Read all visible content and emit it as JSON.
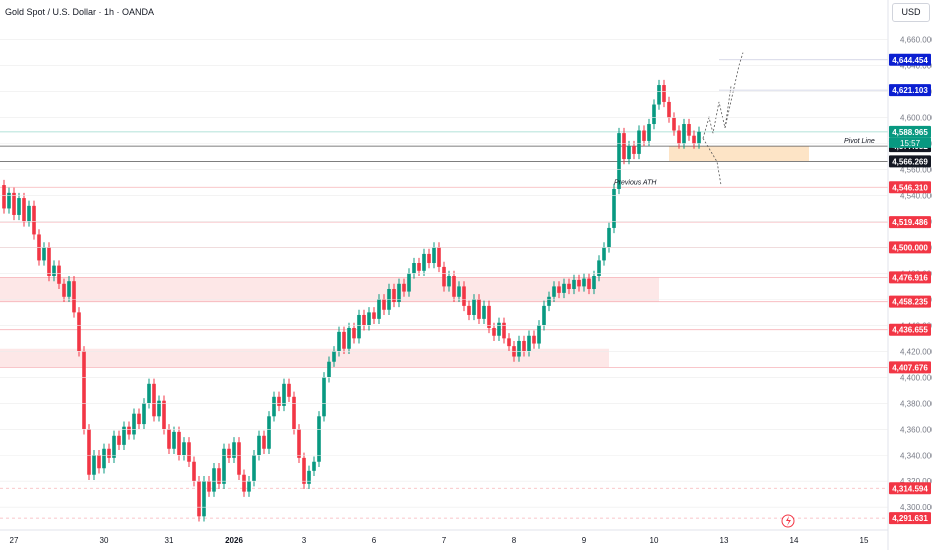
{
  "symbol_title": "Gold Spot / U.S. Dollar · 1h · OANDA",
  "currency": "USD",
  "countdown": "15:57",
  "colors": {
    "up": "#089981",
    "down": "#f23645",
    "zone": "#fde7e7",
    "pivot_zone": "#fde4c6",
    "pivot_line": "#131722",
    "accent_blue": "#0b1fd1",
    "grid": "#ececec"
  },
  "chart_data": {
    "type": "candlestick",
    "title": "Gold Spot / U.S. Dollar · 1h · OANDA",
    "ylim": [
      4284,
      4672
    ],
    "x_ticks": [
      {
        "i": 2,
        "label": "27"
      },
      {
        "i": 20,
        "label": "30"
      },
      {
        "i": 33,
        "label": "31"
      },
      {
        "i": 46,
        "label": "2026"
      },
      {
        "i": 60,
        "label": "3"
      },
      {
        "i": 74,
        "label": "6"
      },
      {
        "i": 88,
        "label": "7"
      },
      {
        "i": 102,
        "label": "8"
      },
      {
        "i": 116,
        "label": "9"
      },
      {
        "i": 130,
        "label": "10"
      },
      {
        "i": 144,
        "label": "13"
      },
      {
        "i": 158,
        "label": "14"
      },
      {
        "i": 172,
        "label": "15"
      }
    ],
    "y_ticks": [
      4300,
      4320,
      4340,
      4360,
      4380,
      4400,
      4420,
      4440,
      4460,
      4480,
      4500,
      4520,
      4540,
      4560,
      4580,
      4600,
      4620,
      4640,
      4660
    ],
    "price_labels": [
      {
        "value": 4644.454,
        "label": "4,644.454",
        "color": "#0b1fd1"
      },
      {
        "value": 4621.103,
        "label": "4,621.103",
        "color": "#0b1fd1"
      },
      {
        "value": 4588.965,
        "label": "4,588.965",
        "color": "#089981"
      },
      {
        "value": 4577.982,
        "label": "4,577.982",
        "color": "#131722"
      },
      {
        "value": 4566.269,
        "label": "4,566.269",
        "color": "#131722"
      },
      {
        "value": 4546.31,
        "label": "4,546.310",
        "color": "#f23645"
      },
      {
        "value": 4519.486,
        "label": "4,519.486",
        "color": "#f23645"
      },
      {
        "value": 4500.0,
        "label": "4,500.000",
        "color": "#f23645"
      },
      {
        "value": 4476.916,
        "label": "4,476.916",
        "color": "#f23645"
      },
      {
        "value": 4458.235,
        "label": "4,458.235",
        "color": "#f23645"
      },
      {
        "value": 4436.655,
        "label": "4,436.655",
        "color": "#f23645"
      },
      {
        "value": 4407.676,
        "label": "4,407.676",
        "color": "#f23645"
      },
      {
        "value": 4314.594,
        "label": "4,314.594",
        "color": "#f23645"
      },
      {
        "value": 4291.631,
        "label": "4,291.631",
        "color": "#f23645"
      }
    ],
    "zones": [
      {
        "from": 4458.235,
        "to": 4476.916,
        "i_end": 131,
        "color": "#fde7e7"
      },
      {
        "from": 4407.676,
        "to": 4422.0,
        "i_end": 121,
        "color": "#fde7e7"
      },
      {
        "from": 4566.269,
        "to": 4577.982,
        "i_start": 133,
        "i_end": 161,
        "color": "#fde4c6"
      }
    ],
    "annotations": [
      {
        "text": "Previous ATH",
        "value": 4546.31,
        "i": 122
      },
      {
        "text": "Pivot Line",
        "value": 4577.982,
        "i": 168
      }
    ],
    "candles": [
      [
        4548,
        4530
      ],
      [
        4530,
        4542
      ],
      [
        4542,
        4525
      ],
      [
        4525,
        4538
      ],
      [
        4538,
        4520
      ],
      [
        4520,
        4532
      ],
      [
        4532,
        4510
      ],
      [
        4510,
        4490
      ],
      [
        4490,
        4500
      ],
      [
        4500,
        4478
      ],
      [
        4478,
        4486
      ],
      [
        4486,
        4472
      ],
      [
        4472,
        4462
      ],
      [
        4462,
        4474
      ],
      [
        4474,
        4450
      ],
      [
        4450,
        4420
      ],
      [
        4420,
        4360
      ],
      [
        4360,
        4325
      ],
      [
        4325,
        4340
      ],
      [
        4340,
        4330
      ],
      [
        4330,
        4345
      ],
      [
        4345,
        4338
      ],
      [
        4338,
        4355
      ],
      [
        4355,
        4348
      ],
      [
        4348,
        4362
      ],
      [
        4362,
        4356
      ],
      [
        4356,
        4372
      ],
      [
        4372,
        4364
      ],
      [
        4364,
        4380
      ],
      [
        4380,
        4395
      ],
      [
        4395,
        4370
      ],
      [
        4370,
        4382
      ],
      [
        4382,
        4360
      ],
      [
        4360,
        4345
      ],
      [
        4345,
        4358
      ],
      [
        4358,
        4340
      ],
      [
        4340,
        4350
      ],
      [
        4350,
        4335
      ],
      [
        4335,
        4320
      ],
      [
        4320,
        4293
      ],
      [
        4293,
        4320
      ],
      [
        4320,
        4312
      ],
      [
        4312,
        4330
      ],
      [
        4330,
        4318
      ],
      [
        4318,
        4345
      ],
      [
        4345,
        4338
      ],
      [
        4338,
        4350
      ],
      [
        4350,
        4325
      ],
      [
        4325,
        4312
      ],
      [
        4312,
        4320
      ],
      [
        4320,
        4340
      ],
      [
        4340,
        4355
      ],
      [
        4355,
        4345
      ],
      [
        4345,
        4370
      ],
      [
        4370,
        4385
      ],
      [
        4385,
        4378
      ],
      [
        4378,
        4395
      ],
      [
        4395,
        4385
      ],
      [
        4385,
        4360
      ],
      [
        4360,
        4338
      ],
      [
        4338,
        4318
      ],
      [
        4318,
        4328
      ],
      [
        4328,
        4335
      ],
      [
        4335,
        4370
      ],
      [
        4370,
        4400
      ],
      [
        4400,
        4412
      ],
      [
        4412,
        4420
      ],
      [
        4420,
        4435
      ],
      [
        4435,
        4422
      ],
      [
        4422,
        4438
      ],
      [
        4438,
        4430
      ],
      [
        4430,
        4448
      ],
      [
        4448,
        4440
      ],
      [
        4440,
        4450
      ],
      [
        4450,
        4445
      ],
      [
        4445,
        4460
      ],
      [
        4460,
        4452
      ],
      [
        4452,
        4468
      ],
      [
        4468,
        4458
      ],
      [
        4458,
        4472
      ],
      [
        4472,
        4466
      ],
      [
        4466,
        4480
      ],
      [
        4480,
        4488
      ],
      [
        4488,
        4482
      ],
      [
        4482,
        4495
      ],
      [
        4495,
        4488
      ],
      [
        4488,
        4500
      ],
      [
        4500,
        4485
      ],
      [
        4485,
        4470
      ],
      [
        4470,
        4478
      ],
      [
        4478,
        4462
      ],
      [
        4462,
        4470
      ],
      [
        4470,
        4455
      ],
      [
        4455,
        4448
      ],
      [
        4448,
        4460
      ],
      [
        4460,
        4445
      ],
      [
        4445,
        4455
      ],
      [
        4455,
        4438
      ],
      [
        4438,
        4432
      ],
      [
        4432,
        4442
      ],
      [
        4442,
        4430
      ],
      [
        4430,
        4424
      ],
      [
        4424,
        4416
      ],
      [
        4416,
        4428
      ],
      [
        4428,
        4420
      ],
      [
        4420,
        4432
      ],
      [
        4432,
        4426
      ],
      [
        4426,
        4440
      ],
      [
        4440,
        4455
      ],
      [
        4455,
        4462
      ],
      [
        4462,
        4470
      ],
      [
        4470,
        4465
      ],
      [
        4465,
        4472
      ],
      [
        4472,
        4468
      ],
      [
        4468,
        4475
      ],
      [
        4475,
        4470
      ],
      [
        4470,
        4476
      ],
      [
        4476,
        4468
      ],
      [
        4468,
        4478
      ],
      [
        4478,
        4490
      ],
      [
        4490,
        4500
      ],
      [
        4500,
        4515
      ],
      [
        4515,
        4545
      ],
      [
        4545,
        4588
      ],
      [
        4588,
        4568
      ],
      [
        4568,
        4578
      ],
      [
        4578,
        4572
      ],
      [
        4572,
        4590
      ],
      [
        4590,
        4582
      ],
      [
        4582,
        4595
      ],
      [
        4595,
        4610
      ],
      [
        4610,
        4625
      ],
      [
        4625,
        4612
      ],
      [
        4612,
        4600
      ],
      [
        4600,
        4590
      ],
      [
        4590,
        4580
      ],
      [
        4580,
        4595
      ],
      [
        4595,
        4586
      ],
      [
        4586,
        4580
      ],
      [
        4580,
        4589
      ]
    ]
  }
}
